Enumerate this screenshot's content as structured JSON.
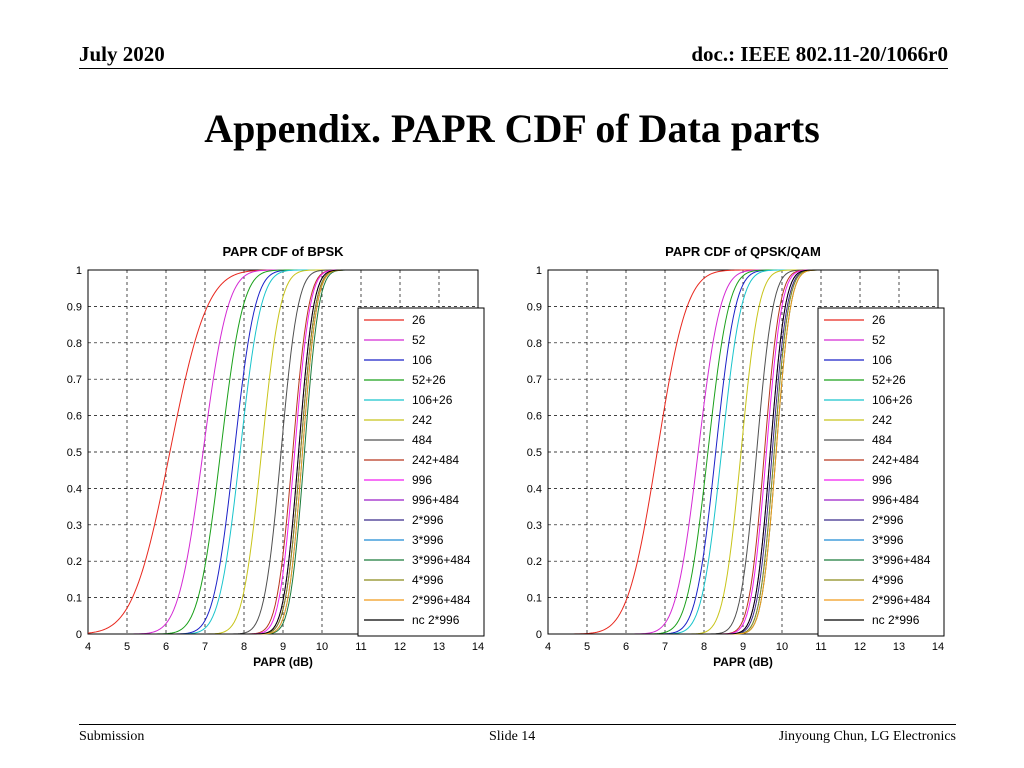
{
  "header": {
    "date": "July 2020",
    "doc": "doc.: IEEE 802.11-20/1066r0"
  },
  "title": "Appendix. PAPR CDF of Data parts",
  "footer": {
    "left": "Submission",
    "center": "Slide 14",
    "right": "Jinyoung Chun, LG Electronics"
  },
  "legend_colors": [
    "#e8281e",
    "#d42ad4",
    "#1b20c8",
    "#1aa01a",
    "#19c4cc",
    "#c8c41a",
    "#505050",
    "#b8361e",
    "#f01ef0",
    "#9a1ec8",
    "#3a2a8a",
    "#1e8ad4",
    "#1a7a3a",
    "#8a8a1a",
    "#f09a1a",
    "#000000"
  ],
  "chart_data": [
    {
      "type": "line",
      "title": "PAPR CDF of BPSK",
      "xlabel": "PAPR (dB)",
      "ylabel": "",
      "xlim": [
        4,
        14
      ],
      "ylim": [
        0,
        1
      ],
      "xticks": [
        "4",
        "5",
        "6",
        "7",
        "8",
        "9",
        "10",
        "11",
        "12",
        "13",
        "14"
      ],
      "yticks": [
        "0",
        "0.1",
        "0.2",
        "0.3",
        "0.4",
        "0.5",
        "0.6",
        "0.7",
        "0.8",
        "0.9",
        "1"
      ],
      "grid": true,
      "legend_position": "right",
      "series": [
        {
          "name": "26",
          "median": 6.1,
          "spread": 0.75
        },
        {
          "name": "52",
          "median": 6.95,
          "spread": 0.5
        },
        {
          "name": "106",
          "median": 7.75,
          "spread": 0.42
        },
        {
          "name": "52+26",
          "median": 7.4,
          "spread": 0.45
        },
        {
          "name": "106+26",
          "median": 7.9,
          "spread": 0.42
        },
        {
          "name": "242",
          "median": 8.45,
          "spread": 0.38
        },
        {
          "name": "484",
          "median": 8.95,
          "spread": 0.34
        },
        {
          "name": "242+484",
          "median": 9.25,
          "spread": 0.32
        },
        {
          "name": "996",
          "median": 9.3,
          "spread": 0.31
        },
        {
          "name": "996+484",
          "median": 9.4,
          "spread": 0.3
        },
        {
          "name": "2*996",
          "median": 9.45,
          "spread": 0.3
        },
        {
          "name": "3*996",
          "median": 9.5,
          "spread": 0.29
        },
        {
          "name": "3*996+484",
          "median": 9.55,
          "spread": 0.29
        },
        {
          "name": "4*996",
          "median": 9.45,
          "spread": 0.3
        },
        {
          "name": "2*996+484",
          "median": 9.5,
          "spread": 0.29
        },
        {
          "name": "nc 2*996",
          "median": 9.4,
          "spread": 0.3
        }
      ]
    },
    {
      "type": "line",
      "title": "PAPR CDF of QPSK/QAM",
      "xlabel": "PAPR (dB)",
      "ylabel": "",
      "xlim": [
        4,
        14
      ],
      "ylim": [
        0,
        1
      ],
      "xticks": [
        "4",
        "5",
        "6",
        "7",
        "8",
        "9",
        "10",
        "11",
        "12",
        "13",
        "14"
      ],
      "yticks": [
        "0",
        "0.1",
        "0.2",
        "0.3",
        "0.4",
        "0.5",
        "0.6",
        "0.7",
        "0.8",
        "0.9",
        "1"
      ],
      "grid": true,
      "legend_position": "right",
      "series": [
        {
          "name": "26",
          "median": 6.8,
          "spread": 0.6
        },
        {
          "name": "52",
          "median": 7.85,
          "spread": 0.45
        },
        {
          "name": "106",
          "median": 8.3,
          "spread": 0.4
        },
        {
          "name": "52+26",
          "median": 8.1,
          "spread": 0.42
        },
        {
          "name": "106+26",
          "median": 8.45,
          "spread": 0.4
        },
        {
          "name": "242",
          "median": 8.95,
          "spread": 0.36
        },
        {
          "name": "484",
          "median": 9.35,
          "spread": 0.33
        },
        {
          "name": "242+484",
          "median": 9.55,
          "spread": 0.31
        },
        {
          "name": "996",
          "median": 9.6,
          "spread": 0.31
        },
        {
          "name": "996+484",
          "median": 9.7,
          "spread": 0.3
        },
        {
          "name": "2*996",
          "median": 9.75,
          "spread": 0.3
        },
        {
          "name": "3*996",
          "median": 9.8,
          "spread": 0.29
        },
        {
          "name": "3*996+484",
          "median": 9.85,
          "spread": 0.29
        },
        {
          "name": "4*996",
          "median": 9.8,
          "spread": 0.29
        },
        {
          "name": "2*996+484",
          "median": 9.85,
          "spread": 0.29
        },
        {
          "name": "nc 2*996",
          "median": 9.7,
          "spread": 0.3
        }
      ]
    }
  ]
}
